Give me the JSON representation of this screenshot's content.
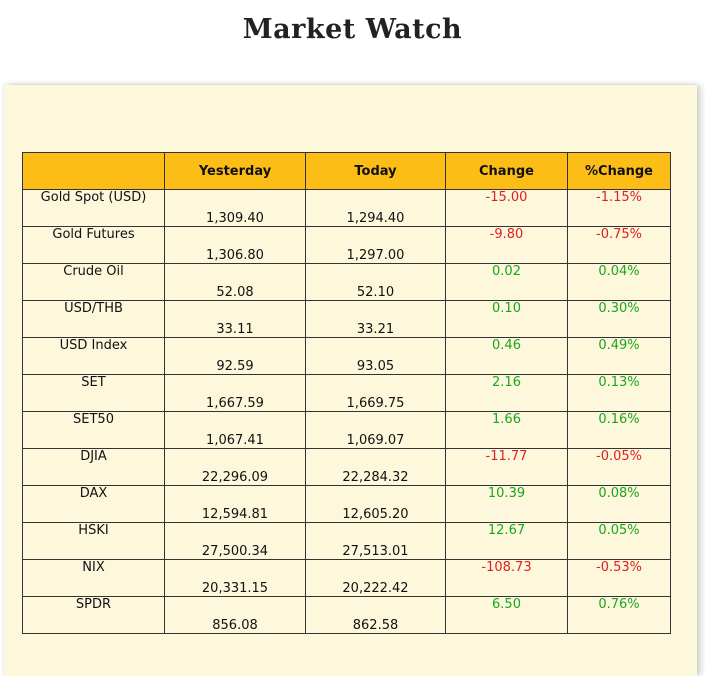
{
  "title": "Market Watch",
  "colors": {
    "header_bg": "#fdbd17",
    "panel_bg": "#fdf7dc",
    "negative": "#e02020",
    "positive": "#1aa81a"
  },
  "table": {
    "headers": [
      "",
      "Yesterday",
      "Today",
      "Change",
      "%Change"
    ],
    "rows": [
      {
        "name": "Gold Spot (USD)",
        "yesterday": "1,309.40",
        "today": "1,294.40",
        "change": "-15.00",
        "pct": "-1.15%",
        "dir": "neg"
      },
      {
        "name": "Gold Futures",
        "yesterday": "1,306.80",
        "today": "1,297.00",
        "change": "-9.80",
        "pct": "-0.75%",
        "dir": "neg"
      },
      {
        "name": "Crude Oil",
        "yesterday": "52.08",
        "today": "52.10",
        "change": "0.02",
        "pct": "0.04%",
        "dir": "pos"
      },
      {
        "name": "USD/THB",
        "yesterday": "33.11",
        "today": "33.21",
        "change": "0.10",
        "pct": "0.30%",
        "dir": "pos"
      },
      {
        "name": "USD Index",
        "yesterday": "92.59",
        "today": "93.05",
        "change": "0.46",
        "pct": "0.49%",
        "dir": "pos"
      },
      {
        "name": "SET",
        "yesterday": "1,667.59",
        "today": "1,669.75",
        "change": "2.16",
        "pct": "0.13%",
        "dir": "pos"
      },
      {
        "name": "SET50",
        "yesterday": "1,067.41",
        "today": "1,069.07",
        "change": "1.66",
        "pct": "0.16%",
        "dir": "pos"
      },
      {
        "name": "DJIA",
        "yesterday": "22,296.09",
        "today": "22,284.32",
        "change": "-11.77",
        "pct": "-0.05%",
        "dir": "neg"
      },
      {
        "name": "DAX",
        "yesterday": "12,594.81",
        "today": "12,605.20",
        "change": "10.39",
        "pct": "0.08%",
        "dir": "pos"
      },
      {
        "name": "HSKI",
        "yesterday": "27,500.34",
        "today": "27,513.01",
        "change": "12.67",
        "pct": "0.05%",
        "dir": "pos"
      },
      {
        "name": "NIX",
        "yesterday": "20,331.15",
        "today": "20,222.42",
        "change": "-108.73",
        "pct": "-0.53%",
        "dir": "neg"
      },
      {
        "name": "SPDR",
        "yesterday": "856.08",
        "today": "862.58",
        "change": "6.50",
        "pct": "0.76%",
        "dir": "pos"
      }
    ]
  }
}
